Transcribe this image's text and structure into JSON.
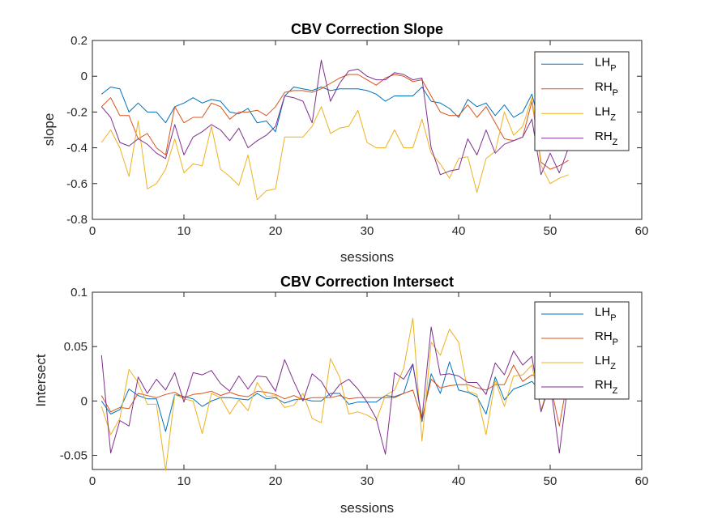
{
  "colors": {
    "LH_P": "#0072BD",
    "RH_P": "#D95319",
    "LH_Z": "#EDB120",
    "RH_Z": "#7E2F8E"
  },
  "chart_data": [
    {
      "type": "line",
      "title": "CBV Correction Slope",
      "xlabel": "sessions",
      "ylabel": "slope",
      "xlim": [
        0,
        60
      ],
      "ylim": [
        -0.8,
        0.2
      ],
      "xticks": [
        "0",
        "10",
        "20",
        "30",
        "40",
        "50",
        "60"
      ],
      "yticks": [
        "-0.8",
        "-0.6",
        "-0.4",
        "-0.2",
        "0",
        "0.2"
      ],
      "legend_position": "top-right",
      "series": [
        {
          "name": "LH",
          "subscript": "P",
          "color_key": "LH_P",
          "x": [
            1,
            2,
            3,
            4,
            5,
            6,
            7,
            8,
            9,
            10,
            11,
            12,
            13,
            14,
            15,
            16,
            17,
            18,
            19,
            20,
            21,
            22,
            23,
            24,
            25,
            26,
            27,
            28,
            29,
            30,
            31,
            32,
            33,
            34,
            35,
            36,
            37,
            38,
            39,
            40,
            41,
            42,
            43,
            44,
            45,
            46,
            47,
            48,
            49,
            50,
            51,
            52
          ],
          "y": [
            -0.1,
            -0.06,
            -0.07,
            -0.2,
            -0.15,
            -0.2,
            -0.2,
            -0.26,
            -0.17,
            -0.15,
            -0.12,
            -0.15,
            -0.13,
            -0.14,
            -0.2,
            -0.21,
            -0.18,
            -0.26,
            -0.25,
            -0.31,
            -0.11,
            -0.06,
            -0.07,
            -0.08,
            -0.06,
            -0.08,
            -0.07,
            -0.07,
            -0.07,
            -0.08,
            -0.1,
            -0.14,
            -0.11,
            -0.11,
            -0.11,
            -0.06,
            -0.14,
            -0.15,
            -0.18,
            -0.23,
            -0.13,
            -0.17,
            -0.15,
            -0.22,
            -0.16,
            -0.23,
            -0.2,
            -0.1,
            -0.3,
            -0.28,
            -0.3,
            -0.31
          ]
        },
        {
          "name": "RH",
          "subscript": "P",
          "color_key": "RH_P",
          "x": [
            1,
            2,
            3,
            4,
            5,
            6,
            7,
            8,
            9,
            10,
            11,
            12,
            13,
            14,
            15,
            16,
            17,
            18,
            19,
            20,
            21,
            22,
            23,
            24,
            25,
            26,
            27,
            28,
            29,
            30,
            31,
            32,
            33,
            34,
            35,
            36,
            37,
            38,
            39,
            40,
            41,
            42,
            43,
            44,
            45,
            46,
            47,
            48,
            49,
            50,
            51,
            52
          ],
          "y": [
            -0.17,
            -0.12,
            -0.22,
            -0.22,
            -0.35,
            -0.32,
            -0.4,
            -0.44,
            -0.17,
            -0.26,
            -0.23,
            -0.23,
            -0.15,
            -0.17,
            -0.24,
            -0.2,
            -0.2,
            -0.19,
            -0.22,
            -0.17,
            -0.09,
            -0.08,
            -0.08,
            -0.09,
            -0.07,
            -0.04,
            -0.01,
            0.01,
            0.01,
            -0.02,
            -0.05,
            -0.01,
            0.01,
            0,
            -0.03,
            -0.02,
            -0.11,
            -0.2,
            -0.22,
            -0.22,
            -0.16,
            -0.23,
            -0.17,
            -0.26,
            -0.35,
            -0.36,
            -0.34,
            -0.14,
            -0.48,
            -0.52,
            -0.5,
            -0.47
          ]
        },
        {
          "name": "LH",
          "subscript": "Z",
          "color_key": "LH_Z",
          "x": [
            1,
            2,
            3,
            4,
            5,
            6,
            7,
            8,
            9,
            10,
            11,
            12,
            13,
            14,
            15,
            16,
            17,
            18,
            19,
            20,
            21,
            22,
            23,
            24,
            25,
            26,
            27,
            28,
            29,
            30,
            31,
            32,
            33,
            34,
            35,
            36,
            37,
            38,
            39,
            40,
            41,
            42,
            43,
            44,
            45,
            46,
            47,
            48,
            49,
            50,
            51,
            52
          ],
          "y": [
            -0.37,
            -0.3,
            -0.4,
            -0.56,
            -0.25,
            -0.63,
            -0.6,
            -0.52,
            -0.35,
            -0.54,
            -0.49,
            -0.5,
            -0.28,
            -0.52,
            -0.56,
            -0.61,
            -0.44,
            -0.69,
            -0.64,
            -0.63,
            -0.34,
            -0.34,
            -0.34,
            -0.28,
            -0.17,
            -0.32,
            -0.29,
            -0.28,
            -0.19,
            -0.37,
            -0.4,
            -0.4,
            -0.3,
            -0.4,
            -0.4,
            -0.24,
            -0.43,
            -0.49,
            -0.57,
            -0.46,
            -0.45,
            -0.65,
            -0.46,
            -0.42,
            -0.2,
            -0.33,
            -0.28,
            -0.12,
            -0.5,
            -0.6,
            -0.57,
            -0.55
          ]
        },
        {
          "name": "RH",
          "subscript": "Z",
          "color_key": "RH_Z",
          "x": [
            1,
            2,
            3,
            4,
            5,
            6,
            7,
            8,
            9,
            10,
            11,
            12,
            13,
            14,
            15,
            16,
            17,
            18,
            19,
            20,
            21,
            22,
            23,
            24,
            25,
            26,
            27,
            28,
            29,
            30,
            31,
            32,
            33,
            34,
            35,
            36,
            37,
            38,
            39,
            40,
            41,
            42,
            43,
            44,
            45,
            46,
            47,
            48,
            49,
            50,
            51,
            52
          ],
          "y": [
            -0.17,
            -0.23,
            -0.37,
            -0.39,
            -0.35,
            -0.38,
            -0.43,
            -0.46,
            -0.27,
            -0.44,
            -0.34,
            -0.31,
            -0.27,
            -0.3,
            -0.36,
            -0.29,
            -0.4,
            -0.36,
            -0.33,
            -0.28,
            -0.11,
            -0.12,
            -0.14,
            -0.26,
            0.09,
            -0.14,
            -0.04,
            0.03,
            0.04,
            0,
            -0.02,
            -0.02,
            0.02,
            0.01,
            -0.02,
            -0.01,
            -0.4,
            -0.55,
            -0.53,
            -0.52,
            -0.35,
            -0.44,
            -0.3,
            -0.43,
            -0.38,
            -0.36,
            -0.34,
            -0.24,
            -0.55,
            -0.43,
            -0.54,
            -0.4
          ]
        }
      ]
    },
    {
      "type": "line",
      "title": "CBV Correction Intersect",
      "xlabel": "sessions",
      "ylabel": "Intersect",
      "xlim": [
        0,
        60
      ],
      "ylim": [
        -0.063,
        0.1
      ],
      "xticks": [
        "0",
        "10",
        "20",
        "30",
        "40",
        "50",
        "60"
      ],
      "yticks": [
        "-0.05",
        "0",
        "0.05",
        "0.1"
      ],
      "legend_position": "top-right",
      "series": [
        {
          "name": "LH",
          "subscript": "P",
          "color_key": "LH_P",
          "x": [
            1,
            2,
            3,
            4,
            5,
            6,
            7,
            8,
            9,
            10,
            11,
            12,
            13,
            14,
            15,
            16,
            17,
            18,
            19,
            20,
            21,
            22,
            23,
            24,
            25,
            26,
            27,
            28,
            29,
            30,
            31,
            32,
            33,
            34,
            35,
            36,
            37,
            38,
            39,
            40,
            41,
            42,
            43,
            44,
            45,
            46,
            47,
            48,
            49,
            50,
            51,
            52
          ],
          "y": [
            0,
            -0.012,
            -0.008,
            0.011,
            0.005,
            0.002,
            0.002,
            -0.028,
            0.006,
            0.004,
            0.002,
            -0.005,
            0,
            0.003,
            0.003,
            0.002,
            0.001,
            0.007,
            0.002,
            0.003,
            -0.002,
            0.001,
            0.002,
            0,
            0,
            0.007,
            0.007,
            -0.003,
            -0.001,
            -0.001,
            -0.001,
            0.005,
            0.004,
            0.007,
            0.034,
            -0.019,
            0.025,
            0.007,
            0.036,
            0.01,
            0.008,
            0.004,
            -0.012,
            0.022,
            0.001,
            0.011,
            0.014,
            0.018,
            0.009,
            0.012,
            0.005,
            0.012
          ]
        },
        {
          "name": "RH",
          "subscript": "P",
          "color_key": "RH_P",
          "x": [
            1,
            2,
            3,
            4,
            5,
            6,
            7,
            8,
            9,
            10,
            11,
            12,
            13,
            14,
            15,
            16,
            17,
            18,
            19,
            20,
            21,
            22,
            23,
            24,
            25,
            26,
            27,
            28,
            29,
            30,
            31,
            32,
            33,
            34,
            35,
            36,
            37,
            38,
            39,
            40,
            41,
            42,
            43,
            44,
            45,
            46,
            47,
            48,
            49,
            50,
            51,
            52
          ],
          "y": [
            0.005,
            -0.01,
            -0.006,
            -0.007,
            0.007,
            0.005,
            0.003,
            0.006,
            0.008,
            0.003,
            0.006,
            0.007,
            0.009,
            0.005,
            0.008,
            0.005,
            0.004,
            0.009,
            0.008,
            0.006,
            0.002,
            0.005,
            0.001,
            0.003,
            0.003,
            0.003,
            0.005,
            0.002,
            0.003,
            0.003,
            0.003,
            0.003,
            0.003,
            0.007,
            0.01,
            -0.017,
            0.02,
            0.012,
            0.014,
            0.015,
            0.015,
            0.012,
            0.01,
            0.015,
            0.015,
            0.033,
            0.018,
            0.024,
            0.02,
            0.016,
            -0.023,
            0.025
          ]
        },
        {
          "name": "LH",
          "subscript": "Z",
          "color_key": "LH_Z",
          "x": [
            1,
            2,
            3,
            4,
            5,
            6,
            7,
            8,
            9,
            10,
            11,
            12,
            13,
            14,
            15,
            16,
            17,
            18,
            19,
            20,
            21,
            22,
            23,
            24,
            25,
            26,
            27,
            28,
            29,
            30,
            31,
            32,
            33,
            34,
            35,
            36,
            37,
            38,
            39,
            40,
            41,
            42,
            43,
            44,
            45,
            46,
            47,
            48,
            49,
            50,
            51,
            52
          ],
          "y": [
            -0.005,
            -0.031,
            -0.016,
            0.029,
            0.017,
            -0.003,
            -0.003,
            -0.064,
            0.006,
            0.002,
            0,
            -0.03,
            0.007,
            0.003,
            -0.012,
            0.001,
            -0.009,
            0.017,
            0.004,
            0.005,
            -0.006,
            -0.004,
            0.007,
            -0.016,
            -0.02,
            0.039,
            0.022,
            -0.012,
            -0.01,
            -0.013,
            -0.018,
            0.005,
            0.01,
            0.03,
            0.076,
            -0.037,
            0.054,
            0.042,
            0.066,
            0.054,
            0.009,
            0.006,
            -0.031,
            0.019,
            -0.005,
            0.023,
            0.024,
            0.033,
            -0.008,
            0.018,
            0.012,
            0.017
          ]
        },
        {
          "name": "RH",
          "subscript": "Z",
          "color_key": "RH_Z",
          "x": [
            1,
            2,
            3,
            4,
            5,
            6,
            7,
            8,
            9,
            10,
            11,
            12,
            13,
            14,
            15,
            16,
            17,
            18,
            19,
            20,
            21,
            22,
            23,
            24,
            25,
            26,
            27,
            28,
            29,
            30,
            31,
            32,
            33,
            34,
            35,
            36,
            37,
            38,
            39,
            40,
            41,
            42,
            43,
            44,
            45,
            46,
            47,
            48,
            49,
            50,
            51,
            52
          ],
          "y": [
            0.042,
            -0.048,
            -0.018,
            -0.023,
            0.022,
            0.007,
            0.02,
            0.01,
            0.026,
            -0.001,
            0.026,
            0.024,
            0.028,
            0.016,
            0.009,
            0.023,
            0.011,
            0.023,
            0.022,
            0.009,
            0.038,
            0.018,
            0,
            0.025,
            0.018,
            0.004,
            0.015,
            0.02,
            0.011,
            -0.001,
            -0.016,
            -0.049,
            0.026,
            0.02,
            0.034,
            -0.016,
            0.068,
            0.024,
            0.025,
            0.023,
            0.017,
            0.017,
            0.006,
            0.035,
            0.024,
            0.046,
            0.033,
            0.041,
            -0.01,
            0.017,
            -0.048,
            0.02
          ]
        }
      ]
    }
  ]
}
